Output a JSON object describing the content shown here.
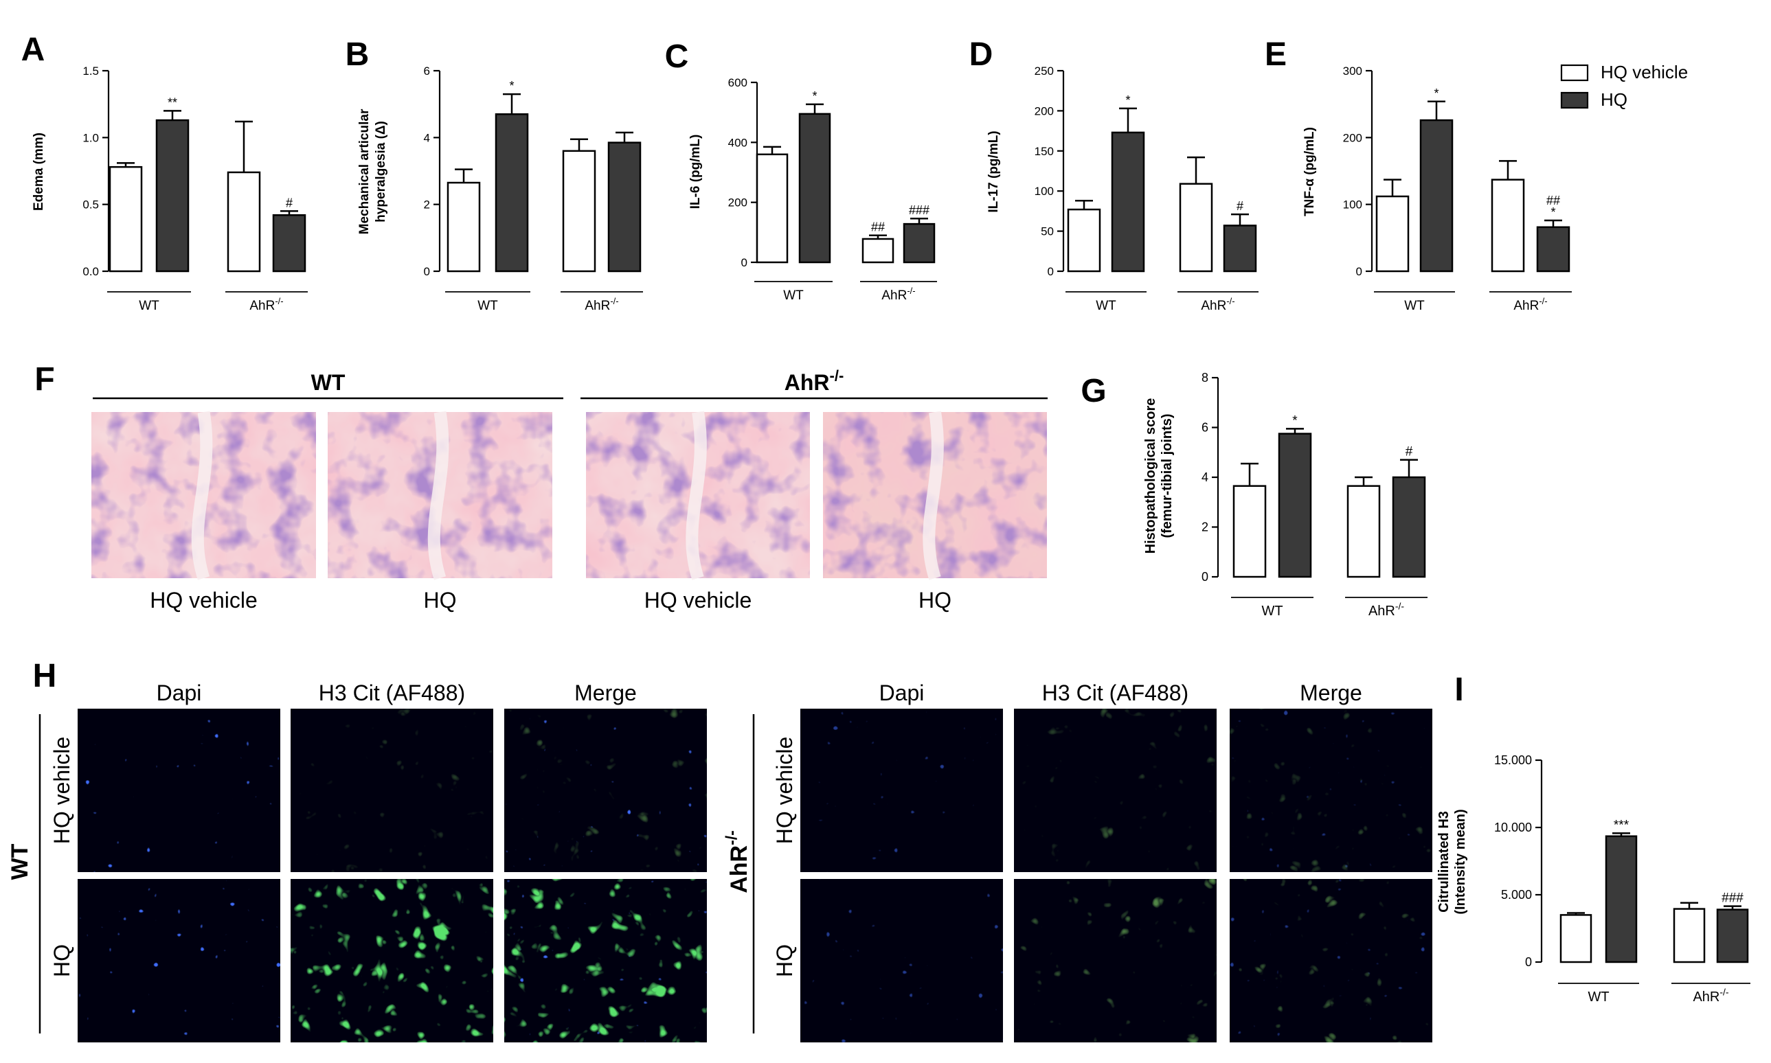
{
  "legend": {
    "items": [
      {
        "label": "HQ vehicle",
        "fill": "#ffffff"
      },
      {
        "label": "HQ",
        "fill": "#3a3a3a"
      }
    ]
  },
  "colors": {
    "vehicle": "#ffffff",
    "hq": "#3a3a3a",
    "axis": "#000000"
  },
  "chart_data": [
    {
      "id": "A",
      "type": "bar",
      "panel_label": "A",
      "ylabel": "Edema (mm)",
      "ylim": [
        0,
        1.5
      ],
      "yticks": [
        "0.0",
        "0.5",
        "1.0",
        "1.5"
      ],
      "yticks_val": [
        0,
        0.5,
        1.0,
        1.5
      ],
      "groups": [
        "WT",
        "AhR-/-"
      ],
      "series": [
        {
          "name": "HQ vehicle",
          "values": [
            0.78,
            0.74
          ],
          "errors": [
            0.03,
            0.38
          ],
          "marks": [
            "",
            ""
          ]
        },
        {
          "name": "HQ",
          "values": [
            1.13,
            0.42
          ],
          "errors": [
            0.07,
            0.03
          ],
          "marks": [
            "**",
            "#"
          ]
        }
      ]
    },
    {
      "id": "B",
      "type": "bar",
      "panel_label": "B",
      "ylabel": [
        "Mechanical articular",
        "hyperalgesia (Δ)"
      ],
      "ylim": [
        0,
        6
      ],
      "yticks": [
        "0",
        "2",
        "4",
        "6"
      ],
      "yticks_val": [
        0,
        2,
        4,
        6
      ],
      "groups": [
        "WT",
        "AhR-/-"
      ],
      "series": [
        {
          "name": "HQ vehicle",
          "values": [
            2.65,
            3.6
          ],
          "errors": [
            0.4,
            0.35
          ],
          "marks": [
            "",
            ""
          ]
        },
        {
          "name": "HQ",
          "values": [
            4.7,
            3.85
          ],
          "errors": [
            0.6,
            0.3
          ],
          "marks": [
            "*",
            ""
          ]
        }
      ]
    },
    {
      "id": "C",
      "type": "bar",
      "panel_label": "C",
      "ylabel": "IL-6 (pg/mL)",
      "ylim": [
        0,
        600
      ],
      "yticks": [
        "0",
        "200",
        "400",
        "600"
      ],
      "yticks_val": [
        0,
        200,
        400,
        600
      ],
      "groups": [
        "WT",
        "AhR-/-"
      ],
      "series": [
        {
          "name": "HQ vehicle",
          "values": [
            360,
            78
          ],
          "errors": [
            25,
            12
          ],
          "marks": [
            "",
            "##"
          ]
        },
        {
          "name": "HQ",
          "values": [
            495,
            128
          ],
          "errors": [
            32,
            18
          ],
          "marks": [
            "*",
            "###"
          ]
        }
      ]
    },
    {
      "id": "D",
      "type": "bar",
      "panel_label": "D",
      "ylabel": "IL-17 (pg/mL)",
      "ylim": [
        0,
        250
      ],
      "yticks": [
        "0",
        "50",
        "100",
        "150",
        "200",
        "250"
      ],
      "yticks_val": [
        0,
        50,
        100,
        150,
        200,
        250
      ],
      "groups": [
        "WT",
        "AhR-/-"
      ],
      "series": [
        {
          "name": "HQ vehicle",
          "values": [
            77,
            109
          ],
          "errors": [
            11,
            33
          ],
          "marks": [
            "",
            ""
          ]
        },
        {
          "name": "HQ",
          "values": [
            173,
            57
          ],
          "errors": [
            30,
            14
          ],
          "marks": [
            "*",
            "#"
          ]
        }
      ]
    },
    {
      "id": "E",
      "type": "bar",
      "panel_label": "E",
      "ylabel": "TNF-α (pg/mL)",
      "ylim": [
        0,
        300
      ],
      "yticks": [
        "0",
        "100",
        "200",
        "300"
      ],
      "yticks_val": [
        0,
        100,
        200,
        300
      ],
      "groups": [
        "WT",
        "AhR-/-"
      ],
      "series": [
        {
          "name": "HQ vehicle",
          "values": [
            112,
            137
          ],
          "errors": [
            25,
            28
          ],
          "marks": [
            "",
            ""
          ]
        },
        {
          "name": "HQ",
          "values": [
            226,
            66
          ],
          "errors": [
            28,
            10
          ],
          "marks": [
            "*",
            "##\n*"
          ]
        }
      ]
    },
    {
      "id": "G",
      "type": "bar",
      "panel_label": "G",
      "ylabel": [
        "Histopathological score",
        "(femur-tibial joints)"
      ],
      "ylim": [
        0,
        8
      ],
      "yticks": [
        "0",
        "2",
        "4",
        "6",
        "8"
      ],
      "yticks_val": [
        0,
        2,
        4,
        6,
        8
      ],
      "groups": [
        "WT",
        "AhR-/-"
      ],
      "series": [
        {
          "name": "HQ vehicle",
          "values": [
            3.65,
            3.65
          ],
          "errors": [
            0.9,
            0.35
          ],
          "marks": [
            "",
            ""
          ]
        },
        {
          "name": "HQ",
          "values": [
            5.75,
            4.0
          ],
          "errors": [
            0.2,
            0.7
          ],
          "marks": [
            "*",
            "#"
          ]
        }
      ]
    },
    {
      "id": "I",
      "type": "bar",
      "panel_label": "I",
      "ylabel": [
        "Citrullinated H3",
        "(Intensity mean)"
      ],
      "ylim": [
        0,
        15000
      ],
      "yticks": [
        "0",
        "5.000",
        "10.000",
        "15.000"
      ],
      "yticks_val": [
        0,
        5000,
        10000,
        15000
      ],
      "groups": [
        "WT",
        "AhR-/-"
      ],
      "series": [
        {
          "name": "HQ vehicle",
          "values": [
            3500,
            3950
          ],
          "errors": [
            150,
            450
          ],
          "marks": [
            "",
            ""
          ]
        },
        {
          "name": "HQ",
          "values": [
            9350,
            3900
          ],
          "errors": [
            220,
            250
          ],
          "marks": [
            "***",
            "###"
          ]
        }
      ]
    }
  ],
  "histology": {
    "panel_label": "F",
    "groups": [
      {
        "title": "WT"
      },
      {
        "title": "AhR-/-"
      }
    ],
    "captions": [
      "HQ vehicle",
      "HQ",
      "HQ vehicle",
      "HQ"
    ]
  },
  "micrographs": {
    "panel_label": "H",
    "columns": [
      "Dapi",
      "H3 Cit (AF488)",
      "Merge"
    ],
    "rows": [
      "HQ vehicle",
      "HQ"
    ],
    "groups": [
      "WT",
      "AhR-/-"
    ]
  }
}
